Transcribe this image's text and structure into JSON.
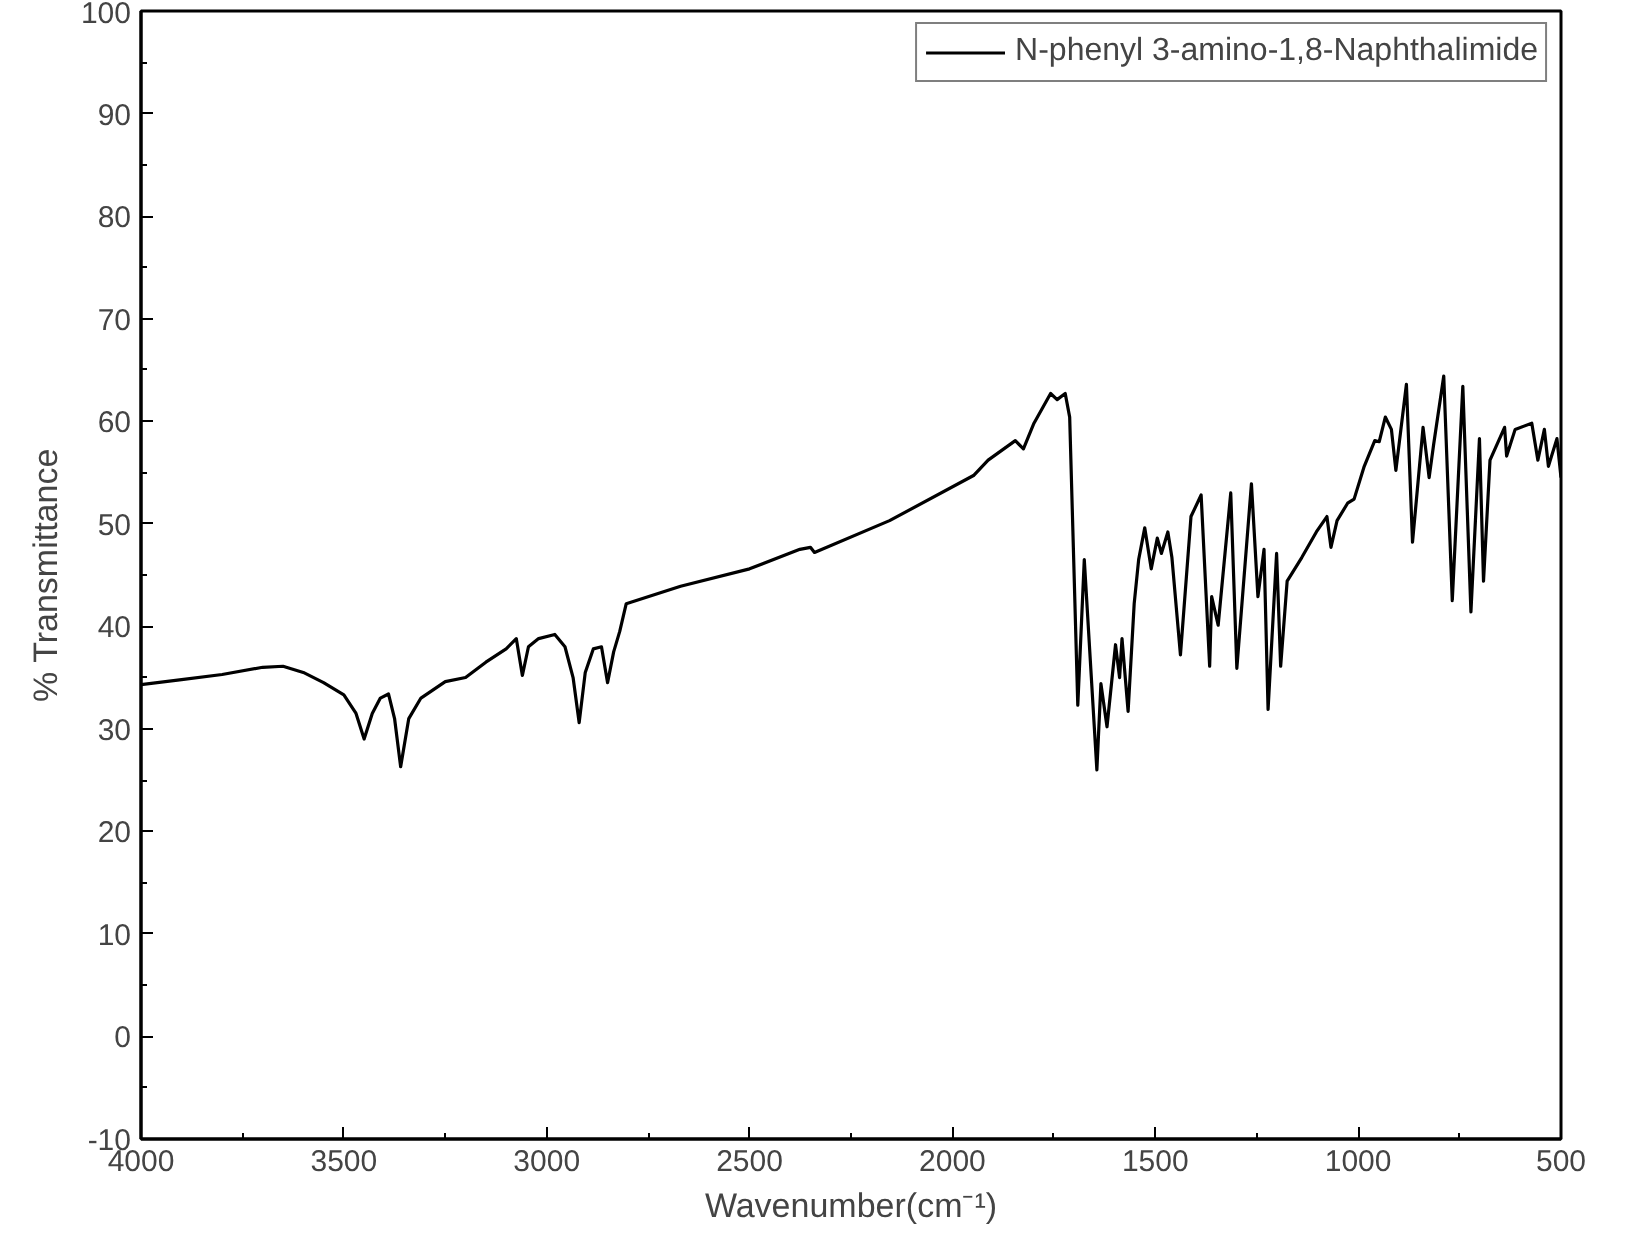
{
  "chart_data": {
    "type": "line",
    "xlabel": "Wavenumber(cm⁻¹)",
    "ylabel": "% Transmittance",
    "xlim": [
      4000,
      500
    ],
    "xticks": [
      4000,
      3500,
      3000,
      2500,
      2000,
      1500,
      1000,
      500
    ],
    "ylim": [
      -10,
      100
    ],
    "yticks": [
      -10,
      0,
      10,
      20,
      30,
      40,
      50,
      60,
      70,
      80,
      90,
      100
    ],
    "grid": false,
    "legend": "top right",
    "marker": "none",
    "line_style": "solid",
    "series": [
      {
        "name": "N-phenyl 3-amino-1,8-Naphthalimide",
        "color": "#000000",
        "x": [
          4000,
          3900,
          3800,
          3700,
          3650,
          3600,
          3550,
          3500,
          3470,
          3450,
          3430,
          3410,
          3390,
          3375,
          3360,
          3340,
          3310,
          3250,
          3200,
          3150,
          3100,
          3075,
          3060,
          3045,
          3020,
          2980,
          2955,
          2935,
          2920,
          2905,
          2885,
          2865,
          2850,
          2835,
          2820,
          2804,
          2670,
          2500,
          2376,
          2350,
          2340,
          2155,
          1948,
          1912,
          1845,
          1825,
          1799,
          1758,
          1742,
          1722,
          1711,
          1691,
          1675,
          1644,
          1634,
          1619,
          1598,
          1588,
          1582,
          1567,
          1552,
          1541,
          1526,
          1510,
          1495,
          1485,
          1469,
          1459,
          1438,
          1412,
          1387,
          1366,
          1361,
          1345,
          1314,
          1299,
          1263,
          1247,
          1232,
          1222,
          1201,
          1191,
          1175,
          1139,
          1103,
          1077,
          1067,
          1052,
          1026,
          1010,
          985,
          959,
          948,
          933,
          918,
          907,
          881,
          866,
          840,
          825,
          814,
          789,
          768,
          742,
          722,
          701,
          691,
          675,
          639,
          634,
          613,
          572,
          557,
          541,
          531,
          510,
          500
        ],
        "values": [
          34.3,
          34.8,
          35.3,
          36.0,
          36.1,
          35.5,
          34.5,
          33.3,
          31.5,
          29.0,
          31.5,
          33.0,
          33.4,
          31.0,
          26.3,
          31.0,
          33.0,
          34.6,
          35.0,
          36.5,
          37.8,
          38.8,
          35.2,
          38.0,
          38.8,
          39.2,
          38.0,
          35.0,
          30.6,
          35.5,
          37.8,
          38.0,
          34.5,
          37.5,
          39.5,
          42.2,
          43.9,
          45.6,
          47.5,
          47.7,
          47.2,
          50.3,
          54.7,
          56.2,
          58.1,
          57.3,
          59.8,
          62.7,
          62.1,
          62.7,
          60.4,
          32.3,
          46.5,
          26.0,
          34.4,
          30.2,
          38.2,
          35.0,
          38.8,
          31.7,
          42.2,
          46.5,
          49.6,
          45.6,
          48.6,
          47.1,
          49.2,
          46.7,
          37.2,
          50.7,
          52.8,
          36.1,
          42.9,
          40.1,
          53.0,
          35.9,
          53.9,
          42.9,
          47.5,
          31.9,
          47.1,
          36.1,
          44.4,
          46.7,
          49.2,
          50.7,
          47.7,
          50.3,
          52.0,
          52.4,
          55.6,
          58.1,
          58.0,
          60.4,
          59.2,
          55.2,
          63.6,
          48.2,
          59.4,
          54.5,
          57.7,
          64.4,
          42.5,
          63.4,
          41.4,
          58.3,
          44.4,
          56.2,
          59.4,
          56.6,
          59.2,
          59.8,
          56.2,
          59.2,
          55.6,
          58.3,
          54.5
        ]
      }
    ]
  }
}
